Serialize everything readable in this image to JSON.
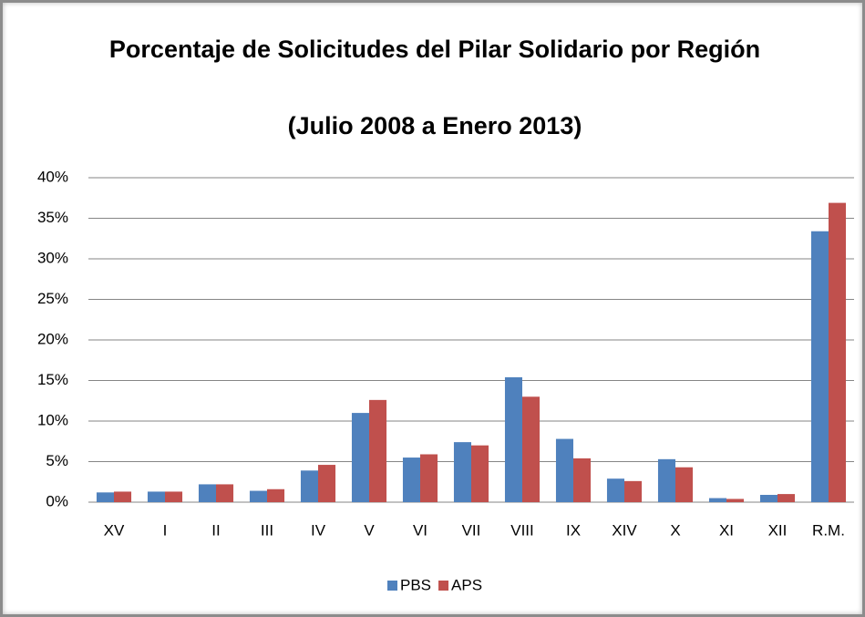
{
  "chart_data": {
    "type": "bar",
    "title": "Porcentaje de Solicitudes del Pilar Solidario por Región",
    "subtitle": "(Julio 2008 a Enero 2013)",
    "categories": [
      "XV",
      "I",
      "II",
      "III",
      "IV",
      "V",
      "VI",
      "VII",
      "VIII",
      "IX",
      "XIV",
      "X",
      "XI",
      "XII",
      "R.M."
    ],
    "series": [
      {
        "name": "PBS",
        "color": "#4f81bd",
        "values": [
          1.2,
          1.3,
          2.2,
          1.4,
          3.9,
          11.0,
          5.5,
          7.4,
          15.4,
          7.8,
          2.9,
          5.3,
          0.5,
          0.9,
          33.4
        ]
      },
      {
        "name": "APS",
        "color": "#c0504d",
        "values": [
          1.3,
          1.3,
          2.2,
          1.6,
          4.6,
          12.6,
          5.9,
          7.0,
          13.0,
          5.4,
          2.6,
          4.3,
          0.4,
          1.0,
          36.9
        ]
      }
    ],
    "ylim": [
      0,
      40
    ],
    "yticks": [
      {
        "value": 0,
        "label": "0%"
      },
      {
        "value": 5,
        "label": "5%"
      },
      {
        "value": 10,
        "label": "10%"
      },
      {
        "value": 15,
        "label": "15%"
      },
      {
        "value": 20,
        "label": "20%"
      },
      {
        "value": 25,
        "label": "25%"
      },
      {
        "value": 30,
        "label": "30%"
      },
      {
        "value": 35,
        "label": "35%"
      },
      {
        "value": 40,
        "label": "40%"
      }
    ],
    "grid": true,
    "legend": "bottom"
  }
}
